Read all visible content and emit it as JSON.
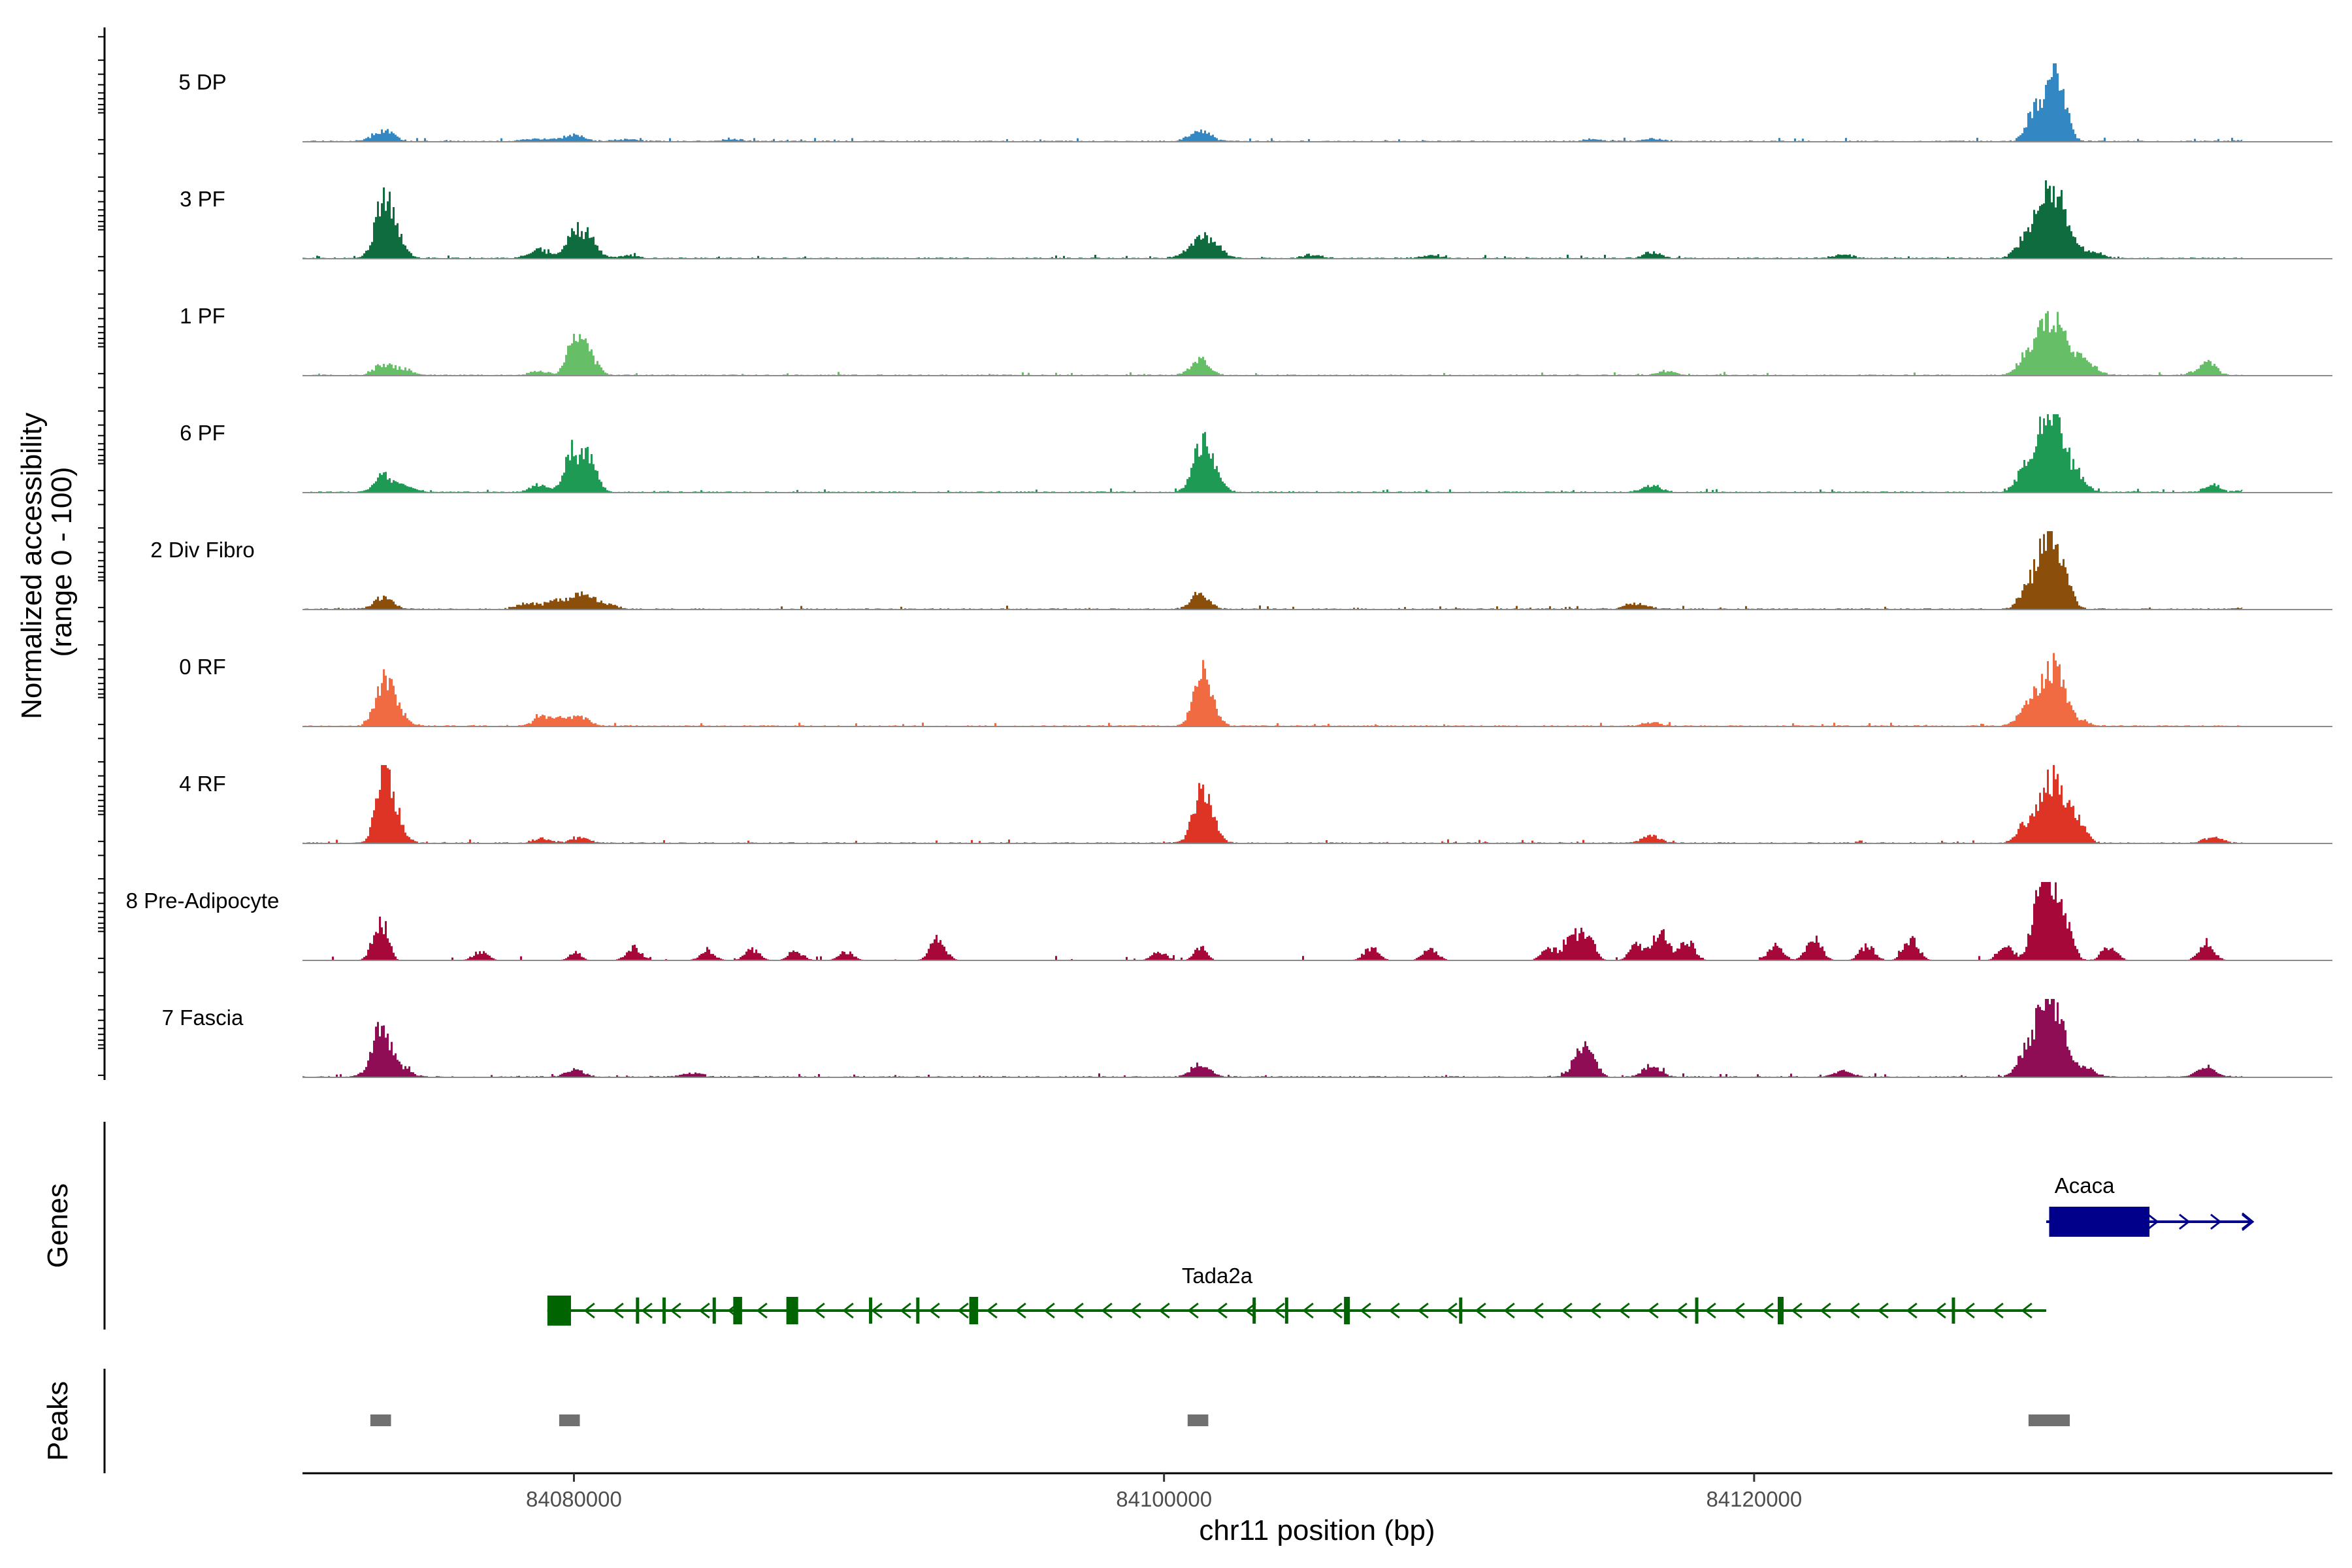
{
  "chart_data": {
    "type": "area",
    "xlabel": "chr11 position (bp)",
    "ylabel": "Normalized accessibility\n(range 0 - 100)",
    "ylim": [
      0,
      100
    ],
    "xlim": [
      84070800,
      84139600
    ],
    "x_ticks": [
      84080000,
      84100000,
      84120000
    ],
    "x_tick_labels": [
      "84080000",
      "84100000",
      "84120000"
    ],
    "panel_labels": {
      "genes": "Genes",
      "peaks": "Peaks"
    },
    "tracks": [
      {
        "name": "5 DP",
        "color": "#3388C4",
        "peaks": [
          [
            84073500,
            15,
            350
          ],
          [
            84078500,
            3,
            300
          ],
          [
            84080000,
            8,
            350
          ],
          [
            84079200,
            3,
            300
          ],
          [
            84081800,
            3,
            350
          ],
          [
            84085300,
            3,
            350
          ],
          [
            84101200,
            15,
            350
          ],
          [
            84114500,
            3,
            300
          ],
          [
            84116500,
            4,
            300
          ],
          [
            84130000,
            75,
            280
          ],
          [
            84129400,
            35,
            250
          ],
          [
            84130400,
            45,
            250
          ],
          [
            84136800,
            3,
            300
          ]
        ]
      },
      {
        "name": "3 PF",
        "color": "#0F6C3E",
        "peaks": [
          [
            84073500,
            72,
            280
          ],
          [
            84073900,
            30,
            300
          ],
          [
            84078800,
            12,
            350
          ],
          [
            84080000,
            35,
            260
          ],
          [
            84080500,
            25,
            280
          ],
          [
            84081800,
            4,
            300
          ],
          [
            84101200,
            28,
            400
          ],
          [
            84101800,
            8,
            300
          ],
          [
            84105000,
            5,
            300
          ],
          [
            84109000,
            4,
            300
          ],
          [
            84116500,
            8,
            300
          ],
          [
            84123000,
            5,
            350
          ],
          [
            84129800,
            68,
            280
          ],
          [
            84130200,
            65,
            280
          ],
          [
            84129200,
            30,
            300
          ],
          [
            84130700,
            30,
            300
          ],
          [
            84131500,
            8,
            300
          ]
        ]
      },
      {
        "name": "1 PF",
        "color": "#66BE67",
        "peaks": [
          [
            84073500,
            15,
            300
          ],
          [
            84074200,
            8,
            300
          ],
          [
            84080000,
            55,
            250
          ],
          [
            84080500,
            25,
            280
          ],
          [
            84078800,
            6,
            300
          ],
          [
            84101200,
            22,
            300
          ],
          [
            84117000,
            5,
            300
          ],
          [
            84129800,
            50,
            280
          ],
          [
            84130200,
            55,
            280
          ],
          [
            84129200,
            25,
            300
          ],
          [
            84130800,
            30,
            300
          ],
          [
            84131400,
            10,
            300
          ],
          [
            84135400,
            15,
            250
          ],
          [
            84135000,
            5,
            300
          ]
        ]
      },
      {
        "name": "6 PF",
        "color": "#1E9A54",
        "peaks": [
          [
            84073500,
            22,
            300
          ],
          [
            84074200,
            8,
            300
          ],
          [
            84079900,
            55,
            260
          ],
          [
            84080500,
            45,
            260
          ],
          [
            84078800,
            10,
            300
          ],
          [
            84101200,
            60,
            280
          ],
          [
            84101600,
            25,
            300
          ],
          [
            84116500,
            10,
            300
          ],
          [
            84129800,
            90,
            280
          ],
          [
            84130300,
            70,
            280
          ],
          [
            84129200,
            35,
            300
          ],
          [
            84130900,
            25,
            300
          ],
          [
            84135500,
            12,
            250
          ],
          [
            84136800,
            5,
            300
          ]
        ]
      },
      {
        "name": "2 Div Fibro",
        "color": "#8B4F0B",
        "peaks": [
          [
            84073500,
            18,
            300
          ],
          [
            84079500,
            12,
            350
          ],
          [
            84080300,
            22,
            300
          ],
          [
            84078500,
            8,
            400
          ],
          [
            84081000,
            8,
            350
          ],
          [
            84101200,
            22,
            300
          ],
          [
            84116000,
            8,
            350
          ],
          [
            84129900,
            100,
            260
          ],
          [
            84130400,
            55,
            280
          ],
          [
            84129300,
            35,
            300
          ],
          [
            84136800,
            4,
            300
          ]
        ]
      },
      {
        "name": "0 RF",
        "color": "#F06A42",
        "peaks": [
          [
            84073500,
            55,
            280
          ],
          [
            84073900,
            25,
            300
          ],
          [
            84078900,
            12,
            300
          ],
          [
            84079600,
            10,
            300
          ],
          [
            84080200,
            12,
            300
          ],
          [
            84101200,
            60,
            260
          ],
          [
            84101500,
            25,
            300
          ],
          [
            84116500,
            5,
            300
          ],
          [
            84129800,
            55,
            280
          ],
          [
            84130300,
            70,
            260
          ],
          [
            84129200,
            25,
            300
          ],
          [
            84131000,
            8,
            300
          ]
        ]
      },
      {
        "name": "4 RF",
        "color": "#DD3426",
        "peaks": [
          [
            84073500,
            100,
            240
          ],
          [
            84073900,
            40,
            280
          ],
          [
            84078900,
            6,
            300
          ],
          [
            84080200,
            8,
            300
          ],
          [
            84101200,
            55,
            280
          ],
          [
            84101500,
            25,
            300
          ],
          [
            84116500,
            10,
            300
          ],
          [
            84129800,
            65,
            280
          ],
          [
            84130300,
            70,
            260
          ],
          [
            84129200,
            25,
            300
          ],
          [
            84130900,
            35,
            280
          ],
          [
            84135500,
            8,
            300
          ]
        ]
      },
      {
        "name": "8 Pre-Adipocyte",
        "color": "#A6083A",
        "peaks": [
          [
            84073500,
            45,
            200
          ],
          [
            84073200,
            20,
            200
          ],
          [
            84076800,
            12,
            250
          ],
          [
            84080000,
            12,
            200
          ],
          [
            84082000,
            18,
            250
          ],
          [
            84084500,
            12,
            250
          ],
          [
            84086000,
            15,
            250
          ],
          [
            84087500,
            12,
            250
          ],
          [
            84089200,
            12,
            250
          ],
          [
            84092300,
            30,
            250
          ],
          [
            84099800,
            12,
            250
          ],
          [
            84101200,
            20,
            200
          ],
          [
            84107000,
            18,
            250
          ],
          [
            84109000,
            15,
            250
          ],
          [
            84113000,
            15,
            250
          ],
          [
            84113800,
            28,
            300
          ],
          [
            84114300,
            32,
            250
          ],
          [
            84116000,
            22,
            250
          ],
          [
            84116800,
            40,
            250
          ],
          [
            84117700,
            28,
            250
          ],
          [
            84120700,
            20,
            250
          ],
          [
            84122000,
            30,
            250
          ],
          [
            84123800,
            20,
            250
          ],
          [
            84125300,
            28,
            250
          ],
          [
            84128500,
            22,
            250
          ],
          [
            84129600,
            80,
            250
          ],
          [
            84130000,
            100,
            220
          ],
          [
            84130500,
            60,
            250
          ],
          [
            84132000,
            20,
            250
          ],
          [
            84135300,
            25,
            250
          ]
        ]
      },
      {
        "name": "7 Fascia",
        "color": "#8E0D54",
        "peaks": [
          [
            84073500,
            60,
            280
          ],
          [
            84073200,
            15,
            300
          ],
          [
            84074200,
            10,
            300
          ],
          [
            84080000,
            10,
            300
          ],
          [
            84084000,
            6,
            300
          ],
          [
            84101200,
            18,
            300
          ],
          [
            84114000,
            25,
            250
          ],
          [
            84114400,
            30,
            250
          ],
          [
            84116500,
            15,
            300
          ],
          [
            84123000,
            8,
            300
          ],
          [
            84129800,
            85,
            300
          ],
          [
            84130300,
            75,
            280
          ],
          [
            84129200,
            35,
            300
          ],
          [
            84131200,
            12,
            300
          ],
          [
            84135300,
            15,
            300
          ]
        ]
      }
    ],
    "genes": [
      {
        "name": "Tada2a",
        "strand": "-",
        "color": "#006400",
        "start": 84079100,
        "end": 84129900,
        "exons": [
          [
            84079100,
            84079900
          ],
          [
            84082100,
            84082200
          ],
          [
            84083000,
            84083100
          ],
          [
            84084700,
            84084800
          ],
          [
            84085400,
            84085700
          ],
          [
            84087200,
            84087600
          ],
          [
            84090000,
            84090100
          ],
          [
            84091600,
            84091700
          ],
          [
            84093400,
            84093700
          ],
          [
            84103000,
            84103100
          ],
          [
            84104100,
            84104200
          ],
          [
            84106100,
            84106300
          ],
          [
            84110000,
            84110100
          ],
          [
            84118000,
            84118100
          ],
          [
            84120800,
            84121000
          ],
          [
            84126700,
            84126800
          ]
        ]
      },
      {
        "name": "Acaca",
        "strand": "+",
        "color": "#00008B",
        "start": 84129900,
        "end": 84136900,
        "exons": [
          [
            84130000,
            84133400
          ]
        ]
      }
    ],
    "peaks": [
      [
        84073100,
        84073800
      ],
      [
        84079500,
        84080200
      ],
      [
        84100800,
        84101500
      ],
      [
        84129300,
        84130700
      ]
    ]
  }
}
